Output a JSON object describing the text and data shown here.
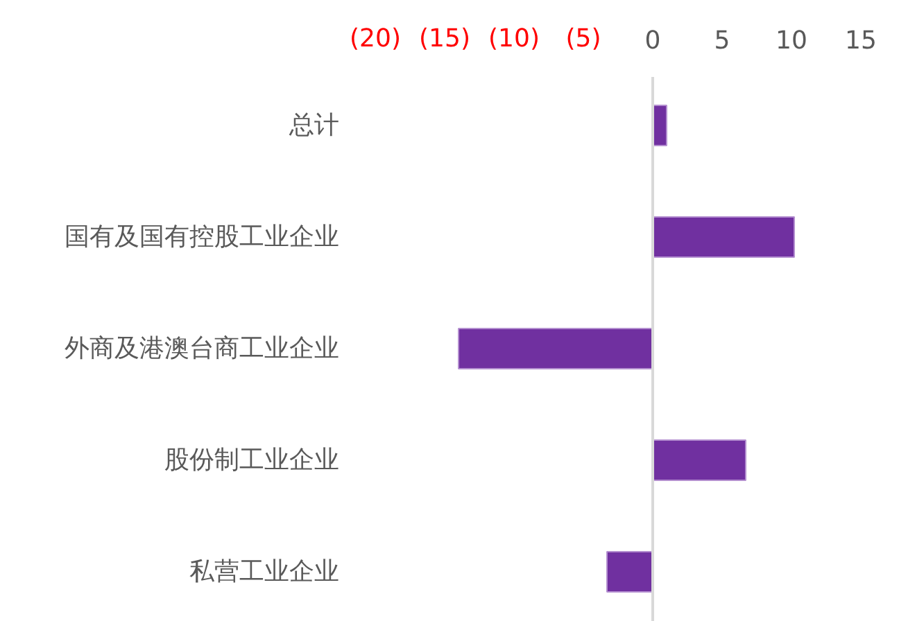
{
  "chart_data": {
    "type": "bar",
    "orientation": "horizontal",
    "categories": [
      "总计",
      "国有及国有控股工业企业",
      "外商及港澳台商工业企业",
      "股份制工业企业",
      "私营工业企业"
    ],
    "values": [
      1.0,
      10.2,
      -14.0,
      6.7,
      -3.3
    ],
    "color": "#7030a0",
    "xlim": [
      -20,
      15
    ],
    "xticks": [
      {
        "value": -20,
        "label": "(20)"
      },
      {
        "value": -15,
        "label": "(15)"
      },
      {
        "value": -10,
        "label": "(10)"
      },
      {
        "value": -5,
        "label": "(5)"
      },
      0,
      5,
      10,
      15
    ]
  }
}
